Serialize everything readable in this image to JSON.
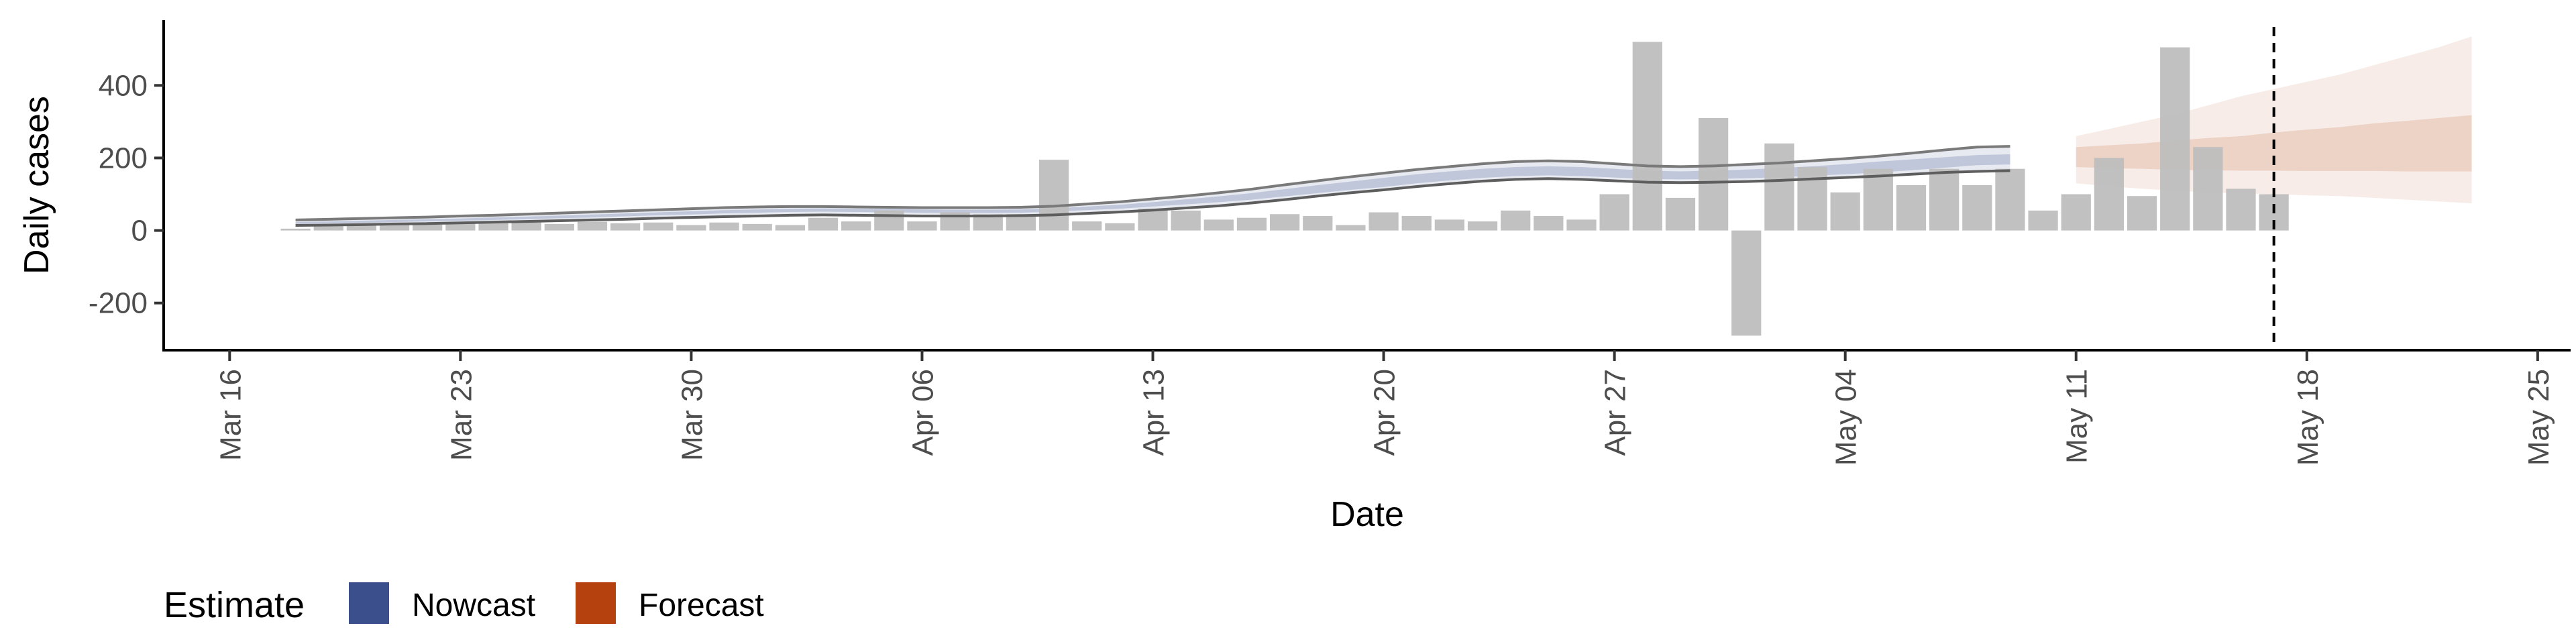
{
  "chart_data": {
    "type": "bar",
    "xlabel": "Date",
    "ylabel": "Daily cases",
    "x_date_range": [
      "2020-03-14",
      "2020-05-26"
    ],
    "ylim": [
      -330,
      580
    ],
    "yticks": [
      -200,
      0,
      200,
      400
    ],
    "ytick_labels": [
      "-200",
      "0",
      "200",
      "400"
    ],
    "xticks": [
      "2020-03-16",
      "2020-03-23",
      "2020-03-30",
      "2020-04-06",
      "2020-04-13",
      "2020-04-20",
      "2020-04-27",
      "2020-05-04",
      "2020-05-11",
      "2020-05-18",
      "2020-05-25"
    ],
    "xtick_labels": [
      "Mar 16",
      "Mar 23",
      "Mar 30",
      "Apr 06",
      "Apr 13",
      "Apr 20",
      "Apr 27",
      "May 04",
      "May 11",
      "May 18",
      "May 25"
    ],
    "grid": false,
    "legend_position": "bottom-left",
    "reference_line": {
      "date": "2020-05-17",
      "style": "dashed"
    },
    "colors": {
      "bars": "#bebebe",
      "nowcast": "#3b4f8c",
      "forecast": "#b5410f",
      "outline": "#7a7a7a"
    },
    "legend": {
      "title": "Estimate",
      "entries": [
        {
          "label": "Nowcast",
          "color": "#3b4f8c"
        },
        {
          "label": "Forecast",
          "color": "#b5410f"
        }
      ]
    },
    "bars": {
      "start_date": "2020-03-18",
      "values": [
        5,
        12,
        15,
        18,
        16,
        20,
        22,
        25,
        18,
        24,
        20,
        22,
        15,
        22,
        18,
        15,
        35,
        25,
        55,
        25,
        50,
        45,
        45,
        195,
        25,
        20,
        60,
        55,
        30,
        35,
        45,
        40,
        15,
        50,
        40,
        30,
        25,
        55,
        40,
        30,
        100,
        520,
        90,
        310,
        -290,
        240,
        175,
        105,
        170,
        125,
        170,
        125,
        170,
        55,
        100,
        200,
        95,
        505,
        230,
        115,
        100
      ]
    },
    "nowcast": {
      "start_date": "2020-03-18",
      "inner_lower": [
        18,
        20,
        21,
        23,
        25,
        27,
        29,
        31,
        34,
        36,
        39,
        42,
        44,
        47,
        49,
        51,
        52,
        51,
        50,
        49,
        48,
        48,
        49,
        52,
        56,
        60,
        66,
        72,
        78,
        85,
        94,
        103,
        112,
        120,
        130,
        138,
        145,
        150,
        152,
        150,
        146,
        142,
        141,
        142,
        144,
        147,
        151,
        155,
        160,
        166,
        173,
        180,
        182
      ],
      "inner_upper": [
        23,
        25,
        27,
        29,
        31,
        33,
        36,
        38,
        41,
        44,
        47,
        50,
        53,
        56,
        58,
        60,
        61,
        60,
        59,
        58,
        57,
        57,
        58,
        61,
        66,
        71,
        78,
        86,
        94,
        103,
        114,
        125,
        135,
        145,
        155,
        163,
        170,
        175,
        177,
        175,
        170,
        165,
        163,
        165,
        168,
        172,
        177,
        183,
        190,
        196,
        202,
        208,
        210
      ],
      "outer_lower": [
        14,
        15,
        16,
        18,
        19,
        21,
        23,
        25,
        27,
        29,
        31,
        34,
        36,
        38,
        40,
        42,
        43,
        42,
        41,
        40,
        40,
        40,
        41,
        43,
        47,
        51,
        56,
        62,
        68,
        76,
        85,
        95,
        104,
        112,
        121,
        129,
        136,
        141,
        143,
        141,
        137,
        133,
        132,
        133,
        135,
        138,
        142,
        146,
        150,
        155,
        160,
        163,
        165
      ],
      "outer_upper": [
        29,
        31,
        33,
        35,
        37,
        40,
        42,
        45,
        48,
        51,
        54,
        57,
        60,
        63,
        65,
        66,
        66,
        65,
        64,
        63,
        63,
        63,
        64,
        67,
        73,
        79,
        87,
        95,
        104,
        114,
        126,
        137,
        148,
        158,
        168,
        176,
        184,
        190,
        192,
        190,
        184,
        178,
        176,
        178,
        182,
        186,
        192,
        198,
        205,
        213,
        222,
        230,
        232
      ]
    },
    "forecast": {
      "start_date": "2020-05-11",
      "inner_lower": [
        175,
        172,
        170,
        167,
        166,
        165,
        165,
        164,
        164,
        164,
        163,
        163,
        163
      ],
      "inner_upper": [
        230,
        235,
        240,
        248,
        255,
        260,
        270,
        278,
        285,
        295,
        302,
        310,
        318
      ],
      "outer_lower": [
        130,
        122,
        115,
        110,
        105,
        102,
        100,
        97,
        95,
        90,
        85,
        80,
        75
      ],
      "outer_upper": [
        260,
        280,
        300,
        320,
        345,
        370,
        390,
        410,
        430,
        455,
        480,
        505,
        535
      ]
    }
  }
}
